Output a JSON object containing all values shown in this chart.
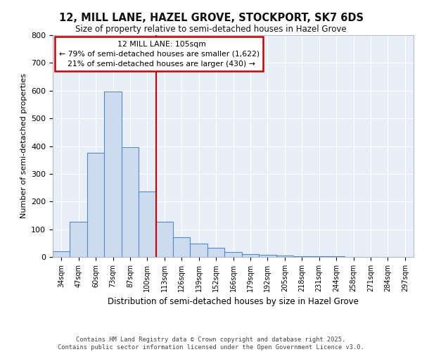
{
  "title1": "12, MILL LANE, HAZEL GROVE, STOCKPORT, SK7 6DS",
  "title2": "Size of property relative to semi-detached houses in Hazel Grove",
  "xlabel": "Distribution of semi-detached houses by size in Hazel Grove",
  "ylabel": "Number of semi-detached properties",
  "footnote": "Contains HM Land Registry data © Crown copyright and database right 2025.\nContains public sector information licensed under the Open Government Licence v3.0.",
  "bin_labels": [
    "34sqm",
    "47sqm",
    "60sqm",
    "73sqm",
    "87sqm",
    "100sqm",
    "113sqm",
    "126sqm",
    "139sqm",
    "152sqm",
    "166sqm",
    "179sqm",
    "192sqm",
    "205sqm",
    "218sqm",
    "231sqm",
    "244sqm",
    "258sqm",
    "271sqm",
    "284sqm",
    "297sqm"
  ],
  "bar_heights": [
    20,
    127,
    375,
    597,
    397,
    235,
    127,
    70,
    47,
    32,
    17,
    10,
    8,
    5,
    3,
    2,
    3,
    0,
    0,
    0,
    0
  ],
  "bar_color": "#ccdcee",
  "bar_edge_color": "#5588cc",
  "property_size": 105,
  "property_label": "12 MILL LANE: 105sqm",
  "pct_smaller": 79,
  "pct_larger": 21,
  "count_smaller": 1622,
  "count_larger": 430,
  "annotation_box_edge_color": "#cc0000",
  "property_line_color": "#cc0000",
  "ylim": [
    0,
    800
  ],
  "yticks": [
    0,
    100,
    200,
    300,
    400,
    500,
    600,
    700,
    800
  ],
  "plot_bg_color": "#e8eef8"
}
